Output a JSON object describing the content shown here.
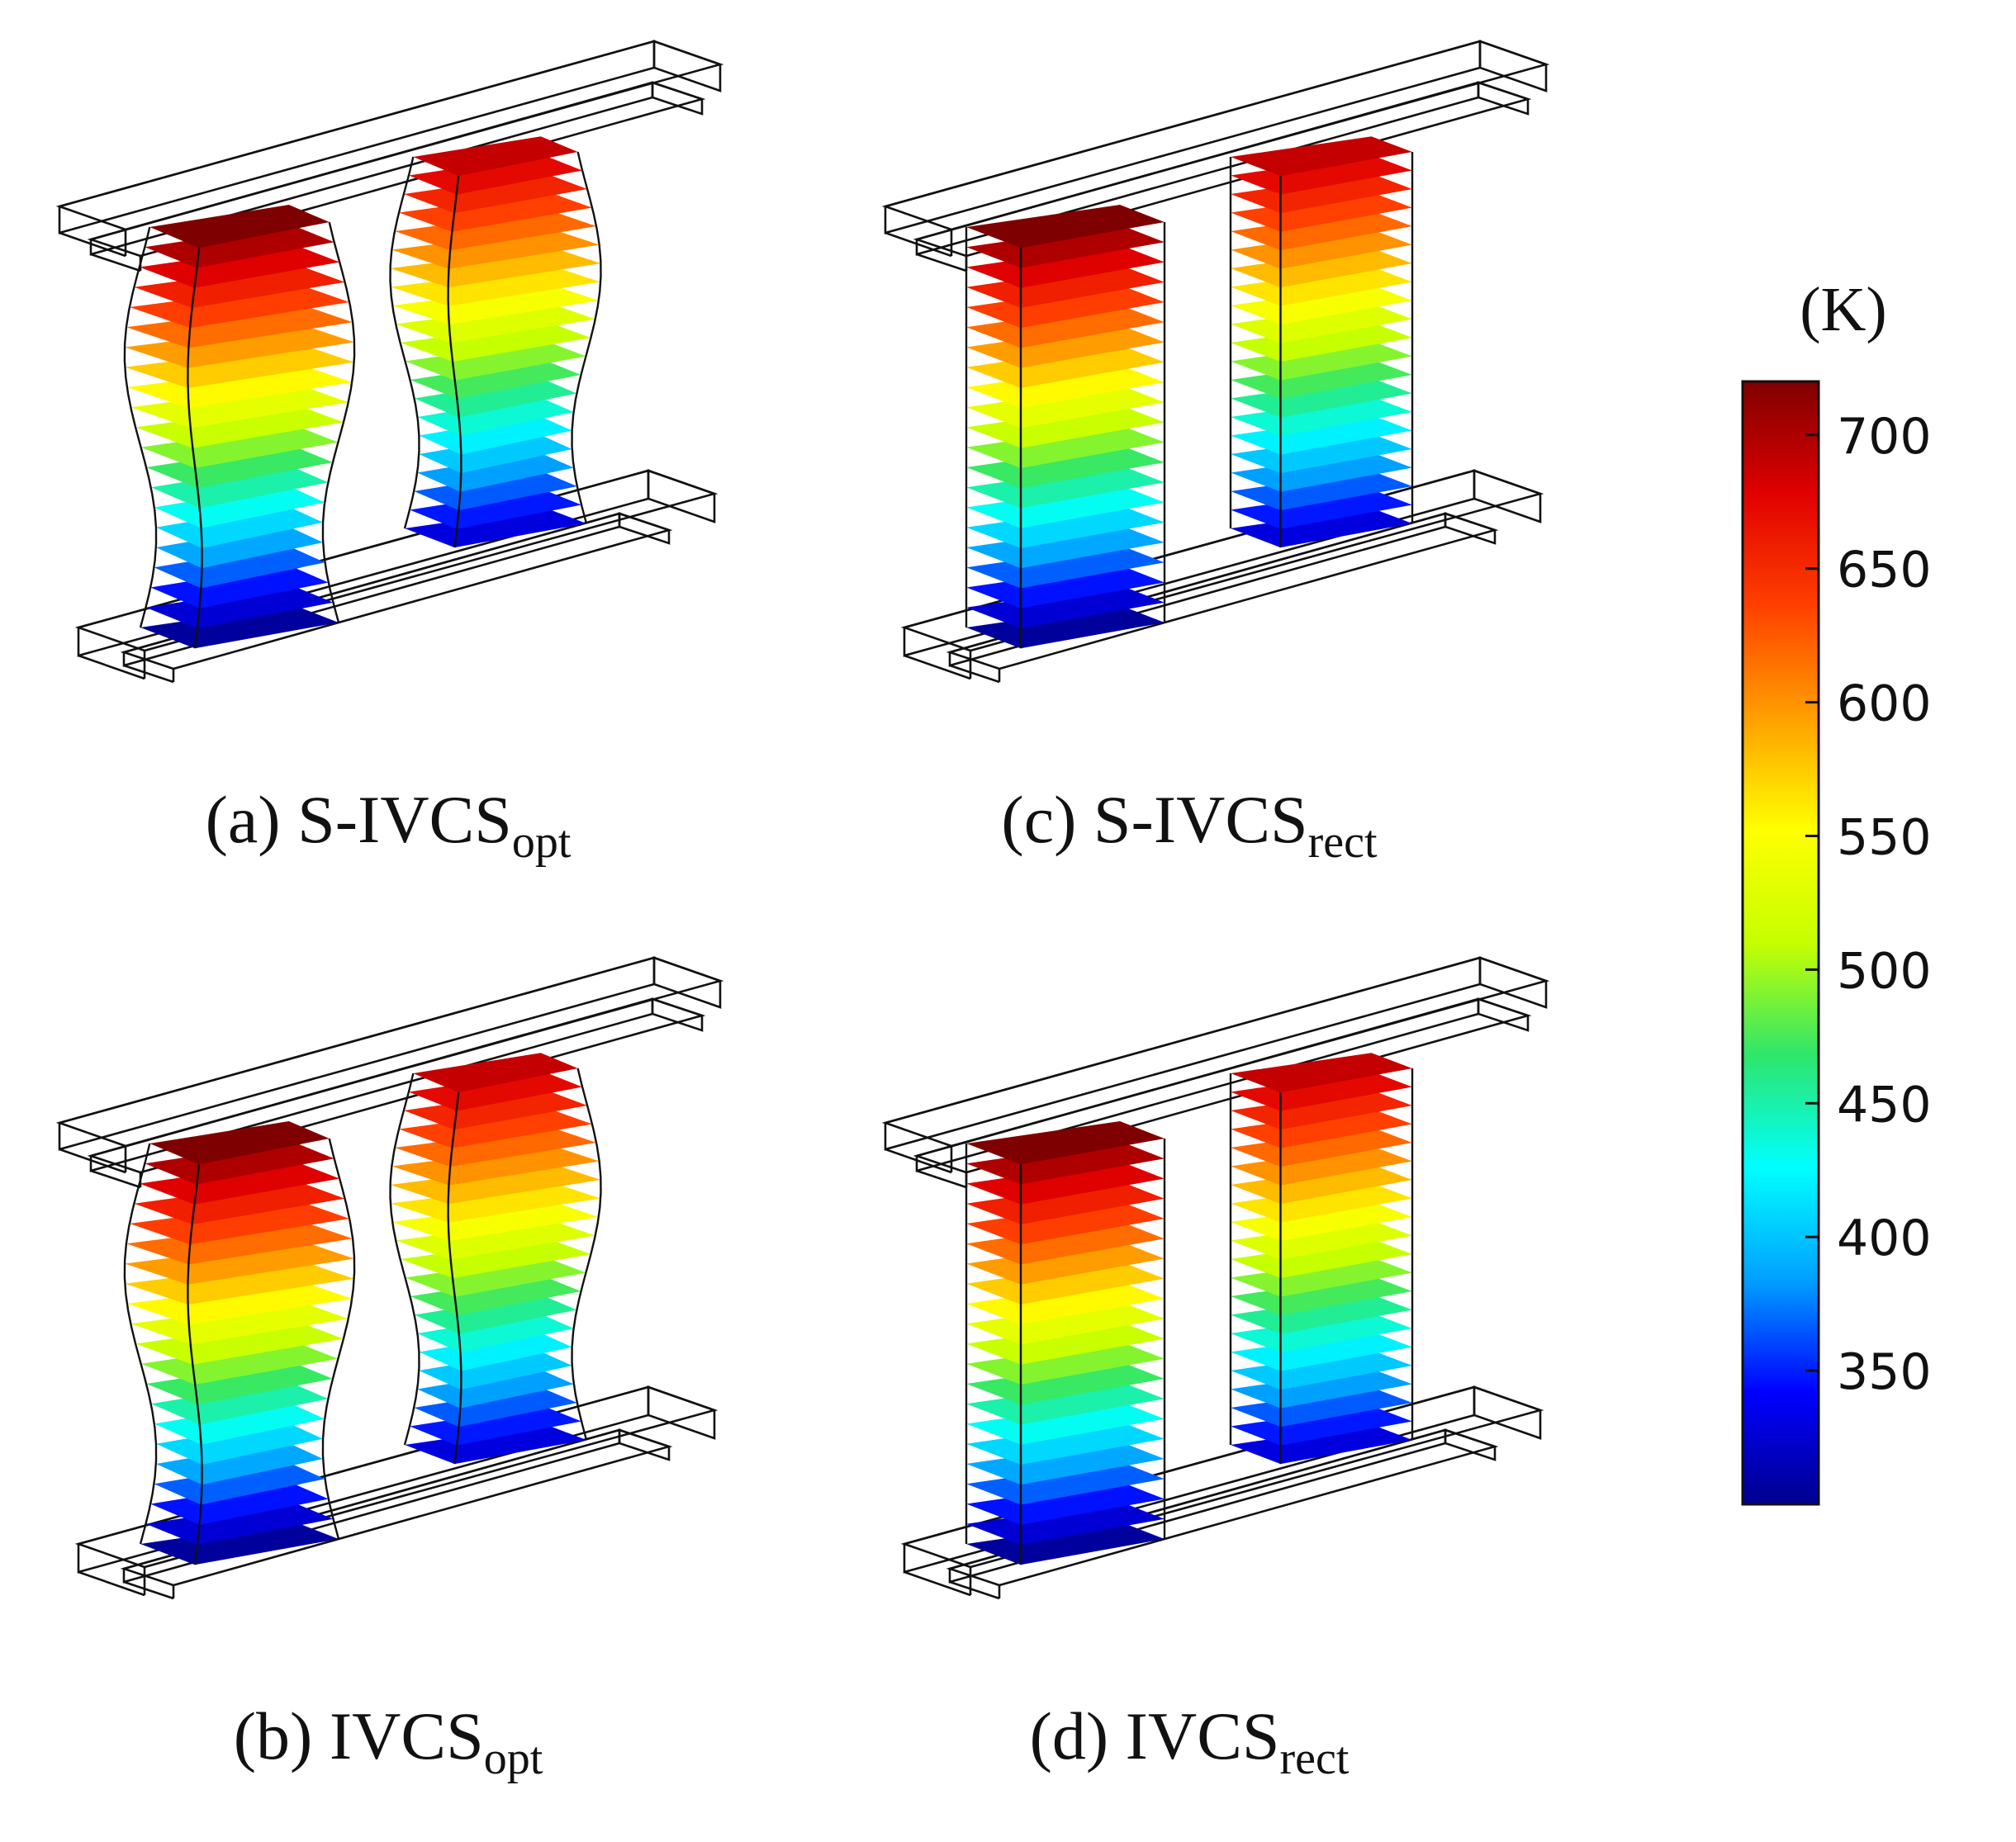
{
  "figure": {
    "panels": [
      {
        "id": "a",
        "prefix": "(a) S-IVCS",
        "subscript": "opt",
        "shape": "curved"
      },
      {
        "id": "c",
        "prefix": "(c) S-IVCS",
        "subscript": "rect",
        "shape": "rect"
      },
      {
        "id": "b",
        "prefix": "(b) IVCS",
        "subscript": "opt",
        "shape": "curved"
      },
      {
        "id": "d",
        "prefix": "(d) IVCS",
        "subscript": "rect",
        "shape": "rect"
      }
    ],
    "colorbar": {
      "unit": "(K)",
      "min": 300,
      "max": 720,
      "ticks": [
        "700",
        "650",
        "600",
        "550",
        "500",
        "450",
        "400",
        "350"
      ],
      "tick_values": [
        700,
        650,
        600,
        550,
        500,
        450,
        400,
        350
      ],
      "colormap": [
        "#00008f",
        "#0000ff",
        "#00a0ff",
        "#00ffff",
        "#2ee66b",
        "#c6ff00",
        "#ffff00",
        "#ffa000",
        "#ff4000",
        "#e00000",
        "#7f0000"
      ]
    },
    "legs": {
      "left_top_temp": 720,
      "left_bottom_temp": 305,
      "right_top_temp": 690,
      "right_bottom_temp": 330,
      "layers": 20
    }
  }
}
